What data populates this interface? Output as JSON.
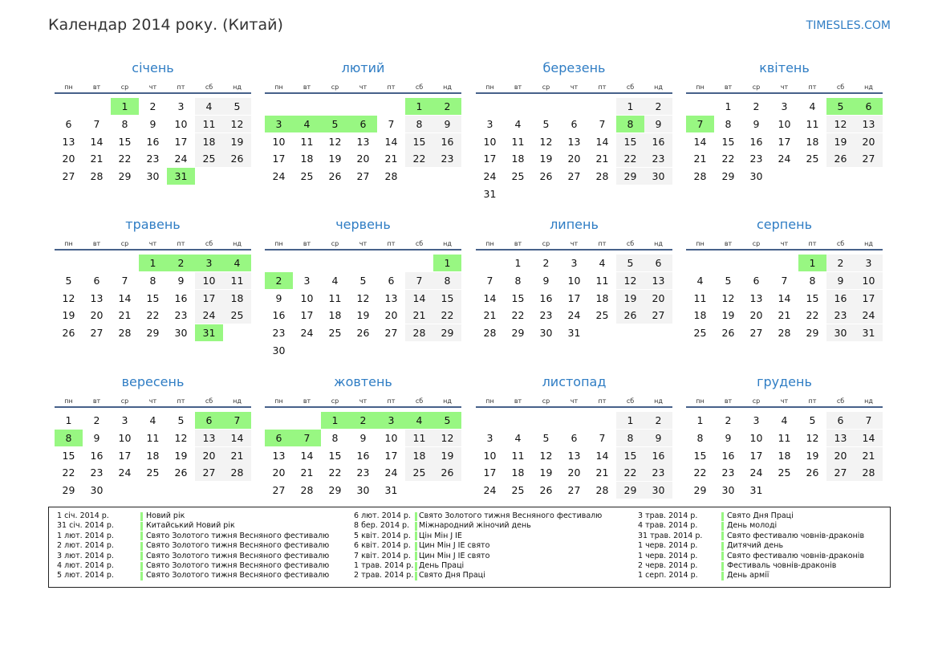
{
  "header": {
    "title": "Календар 2014 року. (Китай)",
    "site": "TIMESLES.COM"
  },
  "weekdays": [
    "пн",
    "вт",
    "ср",
    "чт",
    "пт",
    "сб",
    "нд"
  ],
  "colors": {
    "holiday": "#98f782",
    "weekend": "#f3f3f3",
    "accent": "#2f7dc4"
  },
  "months": [
    {
      "name": "січень",
      "offset": 2,
      "days": 31,
      "holidays": [
        1,
        31
      ]
    },
    {
      "name": "лютий",
      "offset": 5,
      "days": 28,
      "holidays": [
        1,
        2,
        3,
        4,
        5,
        6
      ]
    },
    {
      "name": "березень",
      "offset": 5,
      "days": 31,
      "holidays": [
        8
      ]
    },
    {
      "name": "квітень",
      "offset": 1,
      "days": 30,
      "holidays": [
        5,
        6,
        7
      ]
    },
    {
      "name": "травень",
      "offset": 3,
      "days": 31,
      "holidays": [
        1,
        2,
        3,
        4,
        31
      ]
    },
    {
      "name": "червень",
      "offset": 6,
      "days": 30,
      "holidays": [
        1,
        2
      ]
    },
    {
      "name": "липень",
      "offset": 1,
      "days": 31,
      "holidays": []
    },
    {
      "name": "серпень",
      "offset": 4,
      "days": 31,
      "holidays": [
        1
      ]
    },
    {
      "name": "вересень",
      "offset": 0,
      "days": 30,
      "holidays": [
        6,
        7,
        8
      ]
    },
    {
      "name": "жовтень",
      "offset": 2,
      "days": 31,
      "holidays": [
        1,
        2,
        3,
        4,
        5,
        6,
        7
      ]
    },
    {
      "name": "листопад",
      "offset": 5,
      "days": 30,
      "holidays": []
    },
    {
      "name": "грудень",
      "offset": 0,
      "days": 31,
      "holidays": []
    }
  ],
  "legend": [
    {
      "date": "1 січ. 2014 р.",
      "name": "Новий рік"
    },
    {
      "date": "31 січ. 2014 р.",
      "name": "Китайський Новий рік"
    },
    {
      "date": "1 лют. 2014 р.",
      "name": "Свято Золотого тижня Весняного фестивалю"
    },
    {
      "date": "2 лют. 2014 р.",
      "name": "Свято Золотого тижня Весняного фестивалю"
    },
    {
      "date": "3 лют. 2014 р.",
      "name": "Свято Золотого тижня Весняного фестивалю"
    },
    {
      "date": "4 лют. 2014 р.",
      "name": "Свято Золотого тижня Весняного фестивалю"
    },
    {
      "date": "5 лют. 2014 р.",
      "name": "Свято Золотого тижня Весняного фестивалю"
    },
    {
      "date": "6 лют. 2014 р.",
      "name": "Свято Золотого тижня Весняного фестивалю"
    },
    {
      "date": "8 бер. 2014 р.",
      "name": "Міжнародний жіночий день"
    },
    {
      "date": "5 квіт. 2014 р.",
      "name": "Цін Мін J IE"
    },
    {
      "date": "6 квіт. 2014 р.",
      "name": "Цин Мін J IE свято"
    },
    {
      "date": "7 квіт. 2014 р.",
      "name": "Цин Мін J IE свято"
    },
    {
      "date": "1 трав. 2014 р.",
      "name": "День Праці"
    },
    {
      "date": "2 трав. 2014 р.",
      "name": "Свято Дня Праці"
    },
    {
      "date": "3 трав. 2014 р.",
      "name": "Свято Дня Праці"
    },
    {
      "date": "4 трав. 2014 р.",
      "name": "День молоді"
    },
    {
      "date": "31 трав. 2014 р.",
      "name": "Свято фестивалю човнів-драконів"
    },
    {
      "date": "1 черв. 2014 р.",
      "name": "Дитячий день"
    },
    {
      "date": "1 черв. 2014 р.",
      "name": "Свято фестивалю човнів-драконів"
    },
    {
      "date": "2 черв. 2014 р.",
      "name": "Фестиваль човнів-драконів"
    },
    {
      "date": "1 серп. 2014 р.",
      "name": "День армії"
    }
  ]
}
